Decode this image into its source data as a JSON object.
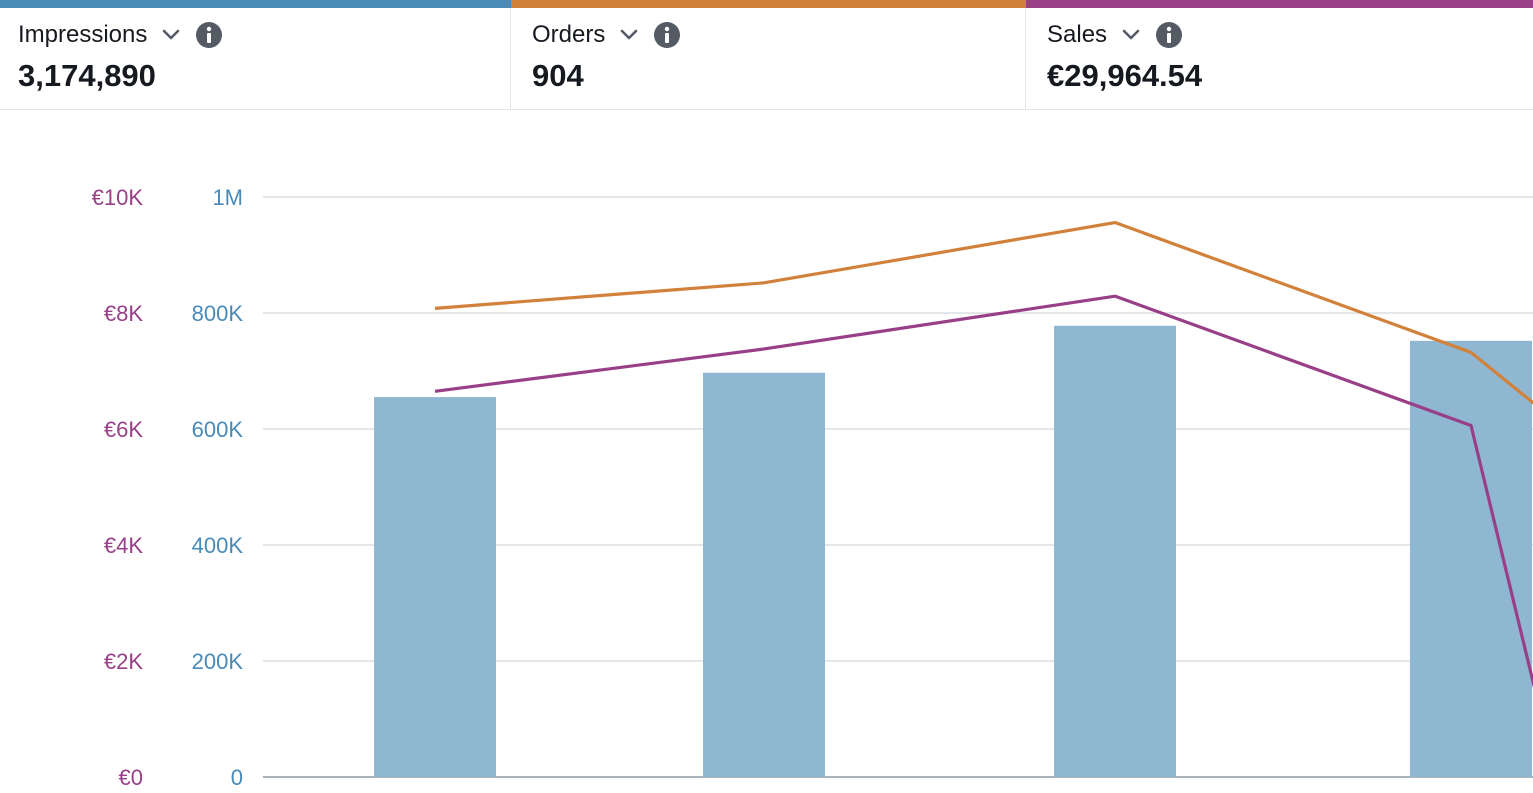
{
  "metrics": [
    {
      "label": "Impressions",
      "value": "3,174,890",
      "color": "#4a8ab8"
    },
    {
      "label": "Orders",
      "value": "904",
      "color": "#d2813a"
    },
    {
      "label": "Sales",
      "value": "€29,964.54",
      "color": "#993f88"
    }
  ],
  "icons": {
    "dropdown": "chevron-down-icon",
    "info": "info-icon"
  },
  "colors": {
    "impressions_bar": "#8fb7d1",
    "impressions_axis": "#4a8ab8",
    "orders_line": "#d2813a",
    "sales_line": "#993f88",
    "sales_axis": "#993f88",
    "grid": "#dcdfe2"
  },
  "chart_data": {
    "type": "bar",
    "categories": [
      "",
      "",
      "",
      ""
    ],
    "left_axis_ticks": [
      "€0",
      "€2K",
      "€4K",
      "€6K",
      "€8K",
      "€10K"
    ],
    "right_axis_ticks": [
      "0",
      "200K",
      "400K",
      "600K",
      "800K",
      "1M"
    ],
    "ylim_impressions": [
      0,
      1000000
    ],
    "ylim_sales": [
      0,
      10000
    ],
    "grid": true,
    "series": [
      {
        "type": "bar",
        "axis": "impressions",
        "values": [
          655000,
          697000,
          778000,
          752000
        ]
      },
      {
        "type": "line",
        "axis": "orders",
        "values": [
          808,
          852,
          956,
          732
        ]
      },
      {
        "type": "line",
        "axis": "sales",
        "values": [
          6650,
          7380,
          8290,
          6060
        ]
      }
    ],
    "trailing_points": {
      "orders": 623,
      "sales": 505
    }
  }
}
